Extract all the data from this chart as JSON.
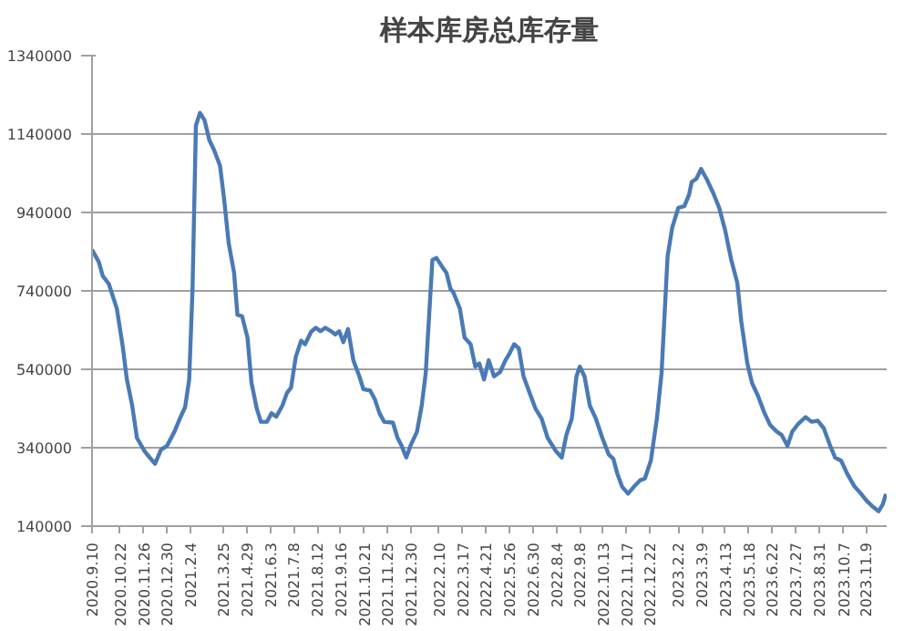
{
  "chart_data": {
    "type": "line",
    "title": "样本库房总库存量",
    "x": [
      "2020-09-10",
      "2020-09-20",
      "2020-09-26",
      "2020-10-05",
      "2020-10-17",
      "2020-10-26",
      "2020-11-01",
      "2020-11-09",
      "2020-11-16",
      "2020-11-27",
      "2020-12-05",
      "2020-12-13",
      "2020-12-22",
      "2020-12-31",
      "2021-01-11",
      "2021-01-20",
      "2021-01-27",
      "2021-02-02",
      "2021-02-07",
      "2021-02-12",
      "2021-02-18",
      "2021-02-25",
      "2021-03-04",
      "2021-03-11",
      "2021-03-20",
      "2021-03-26",
      "2021-04-02",
      "2021-04-10",
      "2021-04-15",
      "2021-04-22",
      "2021-04-30",
      "2021-05-06",
      "2021-05-14",
      "2021-05-20",
      "2021-05-29",
      "2021-06-05",
      "2021-06-12",
      "2021-06-21",
      "2021-06-28",
      "2021-07-04",
      "2021-07-11",
      "2021-07-19",
      "2021-07-25",
      "2021-08-03",
      "2021-08-10",
      "2021-08-17",
      "2021-08-24",
      "2021-09-02",
      "2021-09-08",
      "2021-09-14",
      "2021-09-20",
      "2021-09-27",
      "2021-10-05",
      "2021-10-14",
      "2021-10-20",
      "2021-10-30",
      "2021-11-06",
      "2021-11-13",
      "2021-11-20",
      "2021-12-03",
      "2021-12-10",
      "2021-12-16",
      "2021-12-23",
      "2021-12-30",
      "2022-01-08",
      "2022-01-15",
      "2022-01-21",
      "2022-01-31",
      "2022-02-06",
      "2022-02-14",
      "2022-02-21",
      "2022-02-27",
      "2022-03-03",
      "2022-03-13",
      "2022-03-20",
      "2022-03-29",
      "2022-04-05",
      "2022-04-11",
      "2022-04-18",
      "2022-04-25",
      "2022-05-03",
      "2022-05-12",
      "2022-05-20",
      "2022-05-26",
      "2022-06-02",
      "2022-06-09",
      "2022-06-16",
      "2022-06-25",
      "2022-07-04",
      "2022-07-13",
      "2022-07-22",
      "2022-08-03",
      "2022-08-12",
      "2022-08-19",
      "2022-08-27",
      "2022-09-03",
      "2022-09-08",
      "2022-09-15",
      "2022-09-23",
      "2022-10-02",
      "2022-10-11",
      "2022-10-21",
      "2022-10-28",
      "2022-11-03",
      "2022-11-10",
      "2022-11-19",
      "2022-11-28",
      "2022-12-07",
      "2022-12-14",
      "2022-12-23",
      "2023-01-01",
      "2023-01-08",
      "2023-01-17",
      "2023-01-24",
      "2023-02-02",
      "2023-02-11",
      "2023-02-18",
      "2023-02-22",
      "2023-03-01",
      "2023-03-08",
      "2023-03-17",
      "2023-03-26",
      "2023-04-04",
      "2023-04-13",
      "2023-04-22",
      "2023-05-01",
      "2023-05-07",
      "2023-05-16",
      "2023-05-23",
      "2023-06-01",
      "2023-06-10",
      "2023-06-19",
      "2023-06-29",
      "2023-07-06",
      "2023-07-15",
      "2023-07-22",
      "2023-07-31",
      "2023-08-11",
      "2023-08-20",
      "2023-08-29",
      "2023-09-07",
      "2023-09-16",
      "2023-09-24",
      "2023-10-03",
      "2023-10-12",
      "2023-10-23",
      "2023-11-01",
      "2023-11-10",
      "2023-11-19",
      "2023-11-28",
      "2023-12-04",
      "2023-12-09"
    ],
    "series": [
      {
        "color": "#4a7ab5",
        "values": [
          845000,
          814000,
          778000,
          758000,
          695000,
          596000,
          514000,
          447000,
          365000,
          332000,
          315000,
          299000,
          335000,
          345000,
          381000,
          418000,
          444000,
          514000,
          745000,
          1161000,
          1194000,
          1175000,
          1125000,
          1100000,
          1059000,
          976000,
          861000,
          786000,
          679000,
          675000,
          621000,
          505000,
          439000,
          406000,
          406000,
          428000,
          419000,
          447000,
          480000,
          493000,
          571000,
          613000,
          604000,
          636000,
          646000,
          637000,
          646000,
          637000,
          629000,
          637000,
          609000,
          643000,
          563000,
          522000,
          489000,
          486000,
          464000,
          428000,
          406000,
          404000,
          365000,
          345000,
          315000,
          348000,
          381000,
          447000,
          530000,
          819000,
          824000,
          803000,
          786000,
          745000,
          737000,
          695000,
          621000,
          604000,
          547000,
          555000,
          514000,
          563000,
          522000,
          533000,
          563000,
          580000,
          604000,
          593000,
          522000,
          480000,
          439000,
          414000,
          365000,
          332000,
          315000,
          373000,
          414000,
          522000,
          547000,
          522000,
          447000,
          414000,
          368000,
          323000,
          312000,
          274000,
          241000,
          223000,
          241000,
          257000,
          261000,
          307000,
          414000,
          530000,
          828000,
          902000,
          952000,
          956000,
          985000,
          1018000,
          1026000,
          1051000,
          1023000,
          990000,
          952000,
          894000,
          819000,
          761000,
          662000,
          555000,
          505000,
          472000,
          431000,
          398000,
          381000,
          373000,
          345000,
          381000,
          401000,
          418000,
          406000,
          409000,
          390000,
          348000,
          315000,
          307000,
          274000,
          241000,
          224000,
          205000,
          190000,
          178000,
          195000,
          222000
        ]
      }
    ],
    "xlim": [
      "2020-09-10",
      "2023-12-10"
    ],
    "xticks": [
      {
        "value": "2020-09-10",
        "label": "2020.9.10"
      },
      {
        "value": "2020-10-22",
        "label": "2020.10.22"
      },
      {
        "value": "2020-11-26",
        "label": "2020.11.26"
      },
      {
        "value": "2020-12-30",
        "label": "2020.12.30"
      },
      {
        "value": "2021-02-04",
        "label": "2021.2.4"
      },
      {
        "value": "2021-03-25",
        "label": "2021.3.25"
      },
      {
        "value": "2021-04-29",
        "label": "2021.4.29"
      },
      {
        "value": "2021-06-03",
        "label": "2021.6.3"
      },
      {
        "value": "2021-07-08",
        "label": "2021.7.8"
      },
      {
        "value": "2021-08-12",
        "label": "2021.8.12"
      },
      {
        "value": "2021-09-16",
        "label": "2021.9.16"
      },
      {
        "value": "2021-10-21",
        "label": "2021.10.21"
      },
      {
        "value": "2021-11-25",
        "label": "2021.11.25"
      },
      {
        "value": "2021-12-30",
        "label": "2021.12.30"
      },
      {
        "value": "2022-02-10",
        "label": "2022.2.10"
      },
      {
        "value": "2022-03-17",
        "label": "2022.3.17"
      },
      {
        "value": "2022-04-21",
        "label": "2022.4.21"
      },
      {
        "value": "2022-05-26",
        "label": "2022.5.26"
      },
      {
        "value": "2022-06-30",
        "label": "2022.6.30"
      },
      {
        "value": "2022-08-04",
        "label": "2022.8.4"
      },
      {
        "value": "2022-09-08",
        "label": "2022.9.8"
      },
      {
        "value": "2022-10-13",
        "label": "2022.10.13"
      },
      {
        "value": "2022-11-17",
        "label": "2022.11.17"
      },
      {
        "value": "2022-12-22",
        "label": "2022.12.22"
      },
      {
        "value": "2023-02-02",
        "label": "2023.2.2"
      },
      {
        "value": "2023-03-09",
        "label": "2023.3.9"
      },
      {
        "value": "2023-04-13",
        "label": "2023.4.13"
      },
      {
        "value": "2023-05-18",
        "label": "2023.5.18"
      },
      {
        "value": "2023-06-22",
        "label": "2023.6.22"
      },
      {
        "value": "2023-07-27",
        "label": "2023.7.27"
      },
      {
        "value": "2023-08-31",
        "label": "2023.8.31"
      },
      {
        "value": "2023-10-07",
        "label": "2023.10.7"
      },
      {
        "value": "2023-11-09",
        "label": "2023.11.9"
      }
    ],
    "ylim": [
      140000,
      1340000
    ],
    "yticks": [
      140000,
      340000,
      540000,
      740000,
      940000,
      1140000,
      1340000
    ],
    "grid": "y"
  }
}
